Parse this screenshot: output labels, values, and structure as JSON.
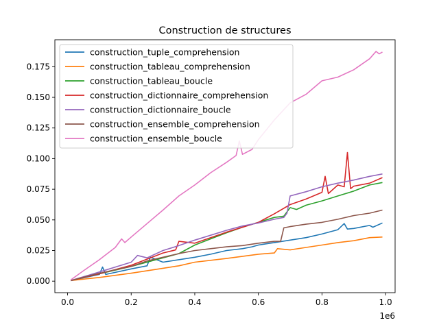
{
  "chart_data": {
    "type": "line",
    "title": "Construction de structures",
    "xlabel": "",
    "ylabel": "",
    "x_offset_label": "1e6",
    "xlim": [
      -0.04,
      1.03
    ],
    "ylim": [
      -0.0094,
      0.197
    ],
    "xticks": [
      0.0,
      0.2,
      0.4,
      0.6,
      0.8,
      1.0
    ],
    "xtick_labels": [
      "0.0",
      "0.2",
      "0.4",
      "0.6",
      "0.8",
      "1.0"
    ],
    "yticks": [
      0.0,
      0.025,
      0.05,
      0.075,
      0.1,
      0.125,
      0.15,
      0.175
    ],
    "ytick_labels": [
      "0.000",
      "0.025",
      "0.050",
      "0.075",
      "0.100",
      "0.125",
      "0.150",
      "0.175"
    ],
    "grid": false,
    "legend_position": "upper-left",
    "series": [
      {
        "name": "construction_tuple_comprehension",
        "color": "#1f77b4",
        "x": [
          0.01,
          0.1,
          0.11,
          0.12,
          0.2,
          0.25,
          0.26,
          0.3,
          0.4,
          0.45,
          0.5,
          0.55,
          0.58,
          0.6,
          0.65,
          0.7,
          0.75,
          0.8,
          0.85,
          0.87,
          0.88,
          0.9,
          0.95,
          0.96,
          0.99
        ],
        "y": [
          0.0005,
          0.0055,
          0.0115,
          0.0055,
          0.01,
          0.0125,
          0.0195,
          0.0155,
          0.0195,
          0.022,
          0.025,
          0.0265,
          0.028,
          0.0295,
          0.0315,
          0.0335,
          0.0355,
          0.0385,
          0.042,
          0.047,
          0.0425,
          0.043,
          0.0455,
          0.044,
          0.0475
        ]
      },
      {
        "name": "construction_tableau_comprehension",
        "color": "#ff7f0e",
        "x": [
          0.01,
          0.1,
          0.2,
          0.3,
          0.35,
          0.4,
          0.5,
          0.6,
          0.65,
          0.66,
          0.7,
          0.75,
          0.8,
          0.85,
          0.9,
          0.95,
          0.99
        ],
        "y": [
          0.0005,
          0.003,
          0.0065,
          0.0105,
          0.0125,
          0.0155,
          0.0185,
          0.022,
          0.023,
          0.0265,
          0.0255,
          0.0275,
          0.0295,
          0.0315,
          0.033,
          0.0355,
          0.036
        ]
      },
      {
        "name": "construction_tableau_boucle",
        "color": "#2ca02c",
        "x": [
          0.01,
          0.1,
          0.2,
          0.3,
          0.35,
          0.4,
          0.45,
          0.5,
          0.55,
          0.6,
          0.65,
          0.68,
          0.7,
          0.72,
          0.75,
          0.8,
          0.85,
          0.9,
          0.95,
          0.99
        ],
        "y": [
          0.0005,
          0.006,
          0.012,
          0.019,
          0.0225,
          0.0295,
          0.0345,
          0.0395,
          0.044,
          0.048,
          0.052,
          0.053,
          0.06,
          0.0585,
          0.062,
          0.0655,
          0.0695,
          0.0735,
          0.0785,
          0.0805
        ]
      },
      {
        "name": "construction_dictionnaire_comprehension",
        "color": "#d62728",
        "x": [
          0.01,
          0.1,
          0.2,
          0.3,
          0.34,
          0.35,
          0.4,
          0.45,
          0.5,
          0.6,
          0.65,
          0.7,
          0.75,
          0.8,
          0.81,
          0.82,
          0.85,
          0.87,
          0.88,
          0.89,
          0.9,
          0.95,
          0.99
        ],
        "y": [
          0.0005,
          0.006,
          0.013,
          0.023,
          0.0255,
          0.0325,
          0.031,
          0.0355,
          0.04,
          0.048,
          0.055,
          0.0625,
          0.067,
          0.0725,
          0.0855,
          0.0715,
          0.0785,
          0.077,
          0.105,
          0.0755,
          0.0775,
          0.08,
          0.0845
        ]
      },
      {
        "name": "construction_dictionnaire_boucle",
        "color": "#9467bd",
        "x": [
          0.01,
          0.1,
          0.2,
          0.22,
          0.25,
          0.3,
          0.35,
          0.4,
          0.45,
          0.5,
          0.55,
          0.6,
          0.65,
          0.68,
          0.69,
          0.7,
          0.75,
          0.8,
          0.85,
          0.9,
          0.95,
          0.99
        ],
        "y": [
          0.0005,
          0.0075,
          0.0155,
          0.021,
          0.019,
          0.025,
          0.029,
          0.0335,
          0.0375,
          0.0415,
          0.045,
          0.0475,
          0.0505,
          0.052,
          0.0555,
          0.0695,
          0.073,
          0.077,
          0.08,
          0.0825,
          0.0855,
          0.0875
        ]
      },
      {
        "name": "construction_ensemble_comprehension",
        "color": "#8c564b",
        "x": [
          0.01,
          0.1,
          0.2,
          0.25,
          0.3,
          0.35,
          0.4,
          0.45,
          0.5,
          0.55,
          0.6,
          0.65,
          0.67,
          0.68,
          0.7,
          0.75,
          0.8,
          0.85,
          0.9,
          0.95,
          0.99
        ],
        "y": [
          0.0005,
          0.0065,
          0.012,
          0.0165,
          0.0195,
          0.0225,
          0.025,
          0.0265,
          0.028,
          0.029,
          0.031,
          0.0325,
          0.0325,
          0.0435,
          0.0445,
          0.0465,
          0.048,
          0.0505,
          0.0535,
          0.0555,
          0.058
        ]
      },
      {
        "name": "construction_ensemble_boucle",
        "color": "#e377c2",
        "x": [
          0.01,
          0.05,
          0.1,
          0.15,
          0.17,
          0.18,
          0.2,
          0.25,
          0.3,
          0.35,
          0.4,
          0.45,
          0.5,
          0.53,
          0.54,
          0.55,
          0.58,
          0.6,
          0.65,
          0.7,
          0.75,
          0.8,
          0.85,
          0.9,
          0.95,
          0.97,
          0.98,
          0.99
        ],
        "y": [
          0.001,
          0.0085,
          0.0175,
          0.0275,
          0.0345,
          0.0315,
          0.036,
          0.047,
          0.058,
          0.0695,
          0.0785,
          0.0885,
          0.097,
          0.1025,
          0.1145,
          0.1035,
          0.1075,
          0.1155,
          0.1315,
          0.1455,
          0.1525,
          0.1635,
          0.1665,
          0.1725,
          0.1815,
          0.1875,
          0.1855,
          0.187
        ]
      }
    ]
  }
}
